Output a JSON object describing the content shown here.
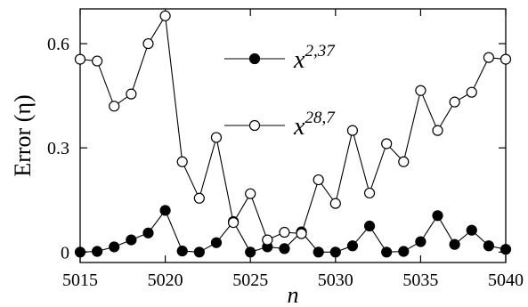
{
  "chart_data": {
    "type": "line",
    "xlabel": "n",
    "ylabel": "Error (η)",
    "xlim": [
      5015,
      5040
    ],
    "ylim": [
      -0.03,
      0.7
    ],
    "xticks": [
      5015,
      5020,
      5025,
      5030,
      5035,
      5040
    ],
    "yticks": [
      0,
      0.3,
      0.6
    ],
    "ytick_labels": [
      "0",
      "0.3",
      "0.6"
    ],
    "grid": false,
    "legend_position": "top-center",
    "x": [
      5015,
      5016,
      5017,
      5018,
      5019,
      5020,
      5021,
      5022,
      5023,
      5024,
      5025,
      5026,
      5027,
      5028,
      5029,
      5030,
      5031,
      5032,
      5033,
      5034,
      5035,
      5036,
      5037,
      5038,
      5039,
      5040
    ],
    "series": [
      {
        "name": "x2,37",
        "legend_base": "x",
        "legend_sup": "2,37",
        "marker": "filled-circle",
        "color": "#000000",
        "values": [
          0.0,
          0.002,
          0.015,
          0.035,
          0.055,
          0.12,
          0.003,
          0.0,
          0.027,
          0.088,
          0.0,
          0.015,
          0.01,
          0.058,
          0.0,
          0.0,
          0.018,
          0.075,
          0.0,
          0.002,
          0.03,
          0.105,
          0.022,
          0.063,
          0.018,
          0.008
        ]
      },
      {
        "name": "x28,7",
        "legend_base": "x",
        "legend_sup": "28,7",
        "marker": "open-circle",
        "color": "#000000",
        "values": [
          0.555,
          0.55,
          0.42,
          0.455,
          0.6,
          0.68,
          0.26,
          0.155,
          0.33,
          0.085,
          0.168,
          0.035,
          0.057,
          0.053,
          0.208,
          0.14,
          0.35,
          0.17,
          0.312,
          0.26,
          0.465,
          0.35,
          0.432,
          0.46,
          0.56,
          0.555
        ]
      }
    ]
  }
}
